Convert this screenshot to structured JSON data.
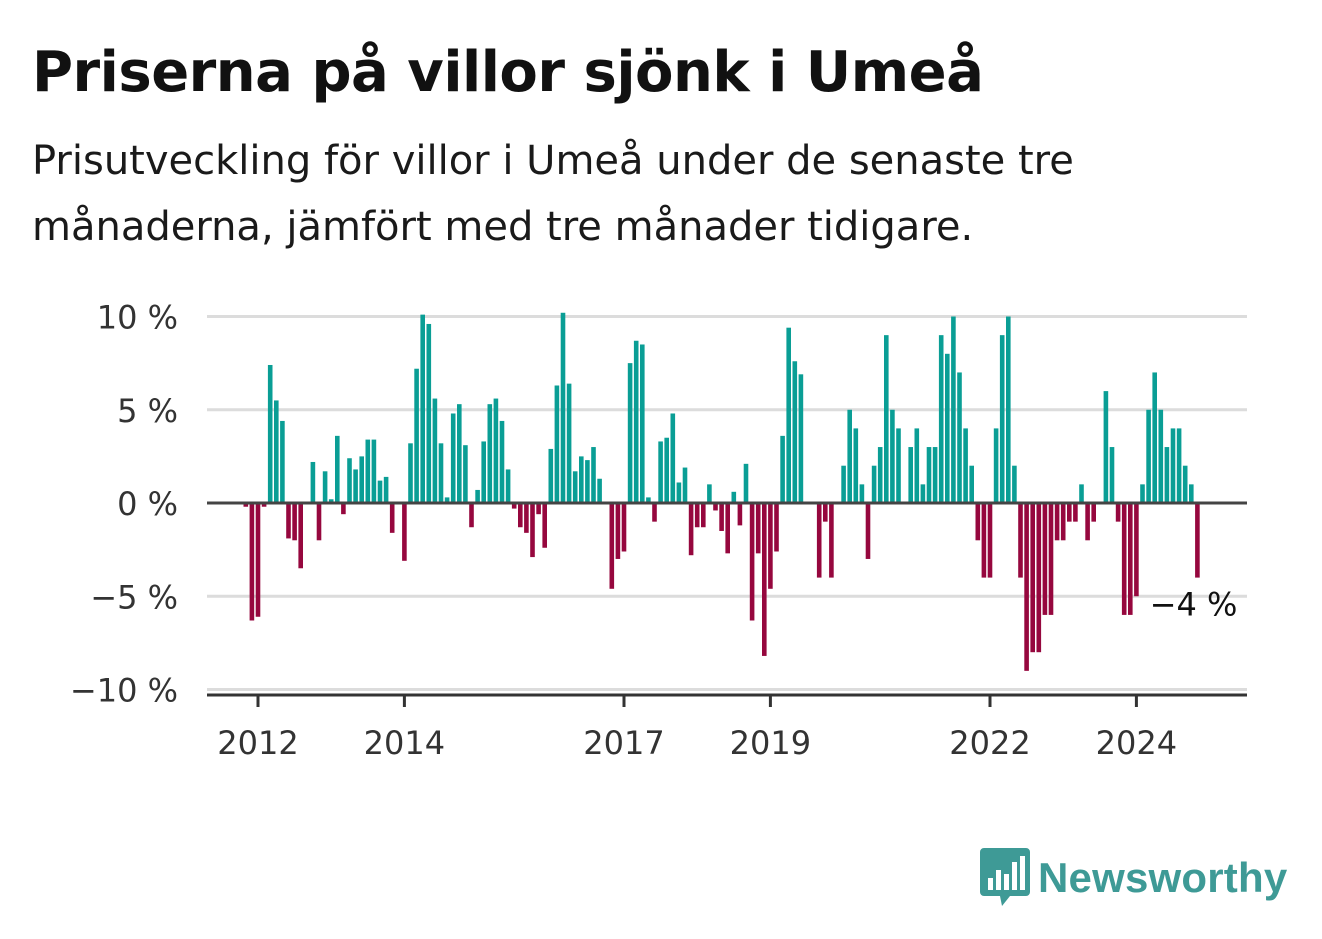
{
  "title": "Priserna på villor sjönk i Umeå",
  "subtitle": "Prisutveckling för villor i Umeå under de senaste tre månaderna, jämfört med tre månader tidigare.",
  "brand": {
    "name": "Newsworthy",
    "icon": "bar-chart-speech-bubble-icon",
    "color": "#3e9a96"
  },
  "chart_data": {
    "type": "bar",
    "x_axis": {
      "start": "2011-11",
      "end": "2025-04",
      "ticks": [
        "2012",
        "2014",
        "2017",
        "2019",
        "2022",
        "2024"
      ]
    },
    "y_axis": {
      "ylim": [
        -10,
        10
      ],
      "ticks": [
        "10 %",
        "5 %",
        "0 %",
        "−5 %",
        "−10 %"
      ],
      "tick_values": [
        10,
        5,
        0,
        -5,
        -10
      ]
    },
    "grid": true,
    "colors": {
      "positive": "#0a9e95",
      "negative": "#96073e"
    },
    "annotation": {
      "text": "−4 %",
      "x": "2024-11",
      "y": -4
    },
    "x": [
      "2011-11",
      "2011-12",
      "2012-01",
      "2012-02",
      "2012-03",
      "2012-04",
      "2012-05",
      "2012-06",
      "2012-07",
      "2012-08",
      "2012-09",
      "2012-10",
      "2012-11",
      "2012-12",
      "2013-01",
      "2013-02",
      "2013-03",
      "2013-04",
      "2013-05",
      "2013-06",
      "2013-07",
      "2013-08",
      "2013-09",
      "2013-10",
      "2013-11",
      "2013-12",
      "2014-01",
      "2014-02",
      "2014-03",
      "2014-04",
      "2014-05",
      "2014-06",
      "2014-07",
      "2014-08",
      "2014-09",
      "2014-10",
      "2014-11",
      "2014-12",
      "2015-01",
      "2015-02",
      "2015-03",
      "2015-04",
      "2015-05",
      "2015-06",
      "2015-07",
      "2015-08",
      "2015-09",
      "2015-10",
      "2015-11",
      "2015-12",
      "2016-01",
      "2016-02",
      "2016-03",
      "2016-04",
      "2016-05",
      "2016-06",
      "2016-07",
      "2016-08",
      "2016-09",
      "2016-10",
      "2016-11",
      "2016-12",
      "2017-01",
      "2017-02",
      "2017-03",
      "2017-04",
      "2017-05",
      "2017-06",
      "2017-07",
      "2017-08",
      "2017-09",
      "2017-10",
      "2017-11",
      "2017-12",
      "2018-01",
      "2018-02",
      "2018-03",
      "2018-04",
      "2018-05",
      "2018-06",
      "2018-07",
      "2018-08",
      "2018-09",
      "2018-10",
      "2018-11",
      "2018-12",
      "2019-01",
      "2019-02",
      "2019-03",
      "2019-04",
      "2019-05",
      "2019-06",
      "2019-07",
      "2019-08",
      "2019-09",
      "2019-10",
      "2019-11",
      "2019-12",
      "2020-01",
      "2020-02",
      "2020-03",
      "2020-04",
      "2020-05",
      "2020-06",
      "2020-07",
      "2020-08",
      "2020-09",
      "2020-10",
      "2020-11",
      "2020-12",
      "2021-01",
      "2021-02",
      "2021-03",
      "2021-04",
      "2021-05",
      "2021-06",
      "2021-07",
      "2021-08",
      "2021-09",
      "2021-10",
      "2021-11",
      "2021-12",
      "2022-01",
      "2022-02",
      "2022-03",
      "2022-04",
      "2022-05",
      "2022-06",
      "2022-07",
      "2022-08",
      "2022-09",
      "2022-10",
      "2022-11",
      "2022-12",
      "2023-01",
      "2023-02",
      "2023-03",
      "2023-04",
      "2023-05",
      "2023-06",
      "2023-07",
      "2023-08",
      "2023-09",
      "2023-10",
      "2023-11",
      "2023-12",
      "2024-01",
      "2024-02",
      "2024-03",
      "2024-04",
      "2024-05",
      "2024-06",
      "2024-07",
      "2024-08",
      "2024-09",
      "2024-10",
      "2024-11"
    ],
    "values": [
      -0.2,
      -6.3,
      -6.1,
      -0.2,
      7.4,
      5.5,
      4.4,
      -1.9,
      -2,
      -3.5,
      0,
      2.2,
      -2,
      1.7,
      0.2,
      3.6,
      -0.6,
      2.4,
      1.8,
      2.5,
      3.4,
      3.4,
      1.2,
      1.4,
      -1.6,
      0,
      -3.1,
      3.2,
      7.2,
      10.1,
      9.6,
      5.6,
      3.2,
      0.3,
      4.8,
      5.3,
      3.1,
      -1.3,
      0.7,
      3.3,
      5.3,
      5.6,
      4.4,
      1.8,
      -0.3,
      -1.3,
      -1.6,
      -2.9,
      -0.6,
      -2.4,
      2.9,
      6.3,
      10.2,
      6.4,
      1.7,
      2.5,
      2.3,
      3,
      1.3,
      0,
      -4.6,
      -3,
      -2.6,
      7.5,
      8.7,
      8.5,
      0.3,
      -1,
      3.3,
      3.5,
      4.8,
      1.1,
      1.9,
      -2.8,
      -1.3,
      -1.3,
      1,
      -0.4,
      -1.5,
      -2.7,
      0.6,
      -1.2,
      2.1,
      -6.3,
      -2.7,
      -8.2,
      -4.6,
      -2.6,
      3.6,
      9.4,
      7.6,
      6.9,
      0,
      0,
      -4,
      -1,
      -4,
      0,
      2,
      5,
      4,
      1,
      -3,
      2,
      3,
      9,
      5,
      4,
      0,
      3,
      4,
      1,
      3,
      3,
      9,
      8,
      10,
      7,
      4,
      2,
      -2,
      -4,
      -4,
      4,
      9,
      10,
      2,
      -4,
      -9,
      -8,
      -8,
      -6,
      -6,
      -2,
      -2,
      -1,
      -1,
      1,
      -2,
      -1,
      0,
      6,
      3,
      -1,
      -6,
      -6,
      -5,
      1,
      5,
      7,
      5,
      3,
      4,
      4,
      2,
      1,
      -4
    ]
  }
}
